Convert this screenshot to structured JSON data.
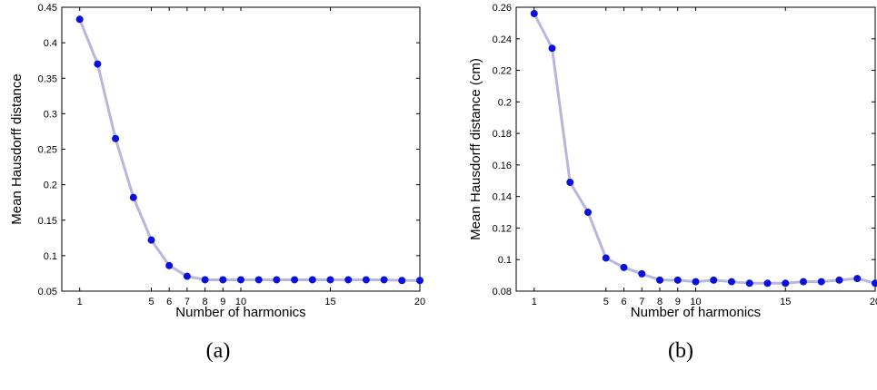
{
  "chart_data": [
    {
      "type": "line",
      "panel_caption": "(a)",
      "xlabel": "Number of harmonics",
      "ylabel": "Mean Hausdorff distance",
      "xlim": [
        0,
        20
      ],
      "ylim": [
        0.05,
        0.45
      ],
      "xticks": [
        1,
        5,
        6,
        7,
        8,
        9,
        10,
        15,
        20
      ],
      "yticks": [
        "0.05",
        "0.1",
        "0.15",
        "0.2",
        "0.25",
        "0.3",
        "0.35",
        "0.4",
        "0.45"
      ],
      "grid": false,
      "series": [
        {
          "x": [
            1,
            2,
            3,
            4,
            5,
            6,
            7,
            8,
            9,
            10,
            11,
            12,
            13,
            14,
            15,
            16,
            17,
            18,
            19,
            20
          ],
          "values": [
            0.433,
            0.37,
            0.265,
            0.182,
            0.122,
            0.086,
            0.071,
            0.066,
            0.066,
            0.066,
            0.066,
            0.066,
            0.066,
            0.066,
            0.066,
            0.066,
            0.066,
            0.066,
            0.065,
            0.065
          ]
        }
      ],
      "colors": {
        "marker": "#0a10dc",
        "line": "#b7b7de"
      }
    },
    {
      "type": "line",
      "panel_caption": "(b)",
      "xlabel": "Number of harmonics",
      "ylabel": "Mean Hausdorff distance (cm)",
      "xlim": [
        0,
        20
      ],
      "ylim": [
        0.08,
        0.26
      ],
      "xticks": [
        1,
        5,
        6,
        7,
        8,
        9,
        10,
        15,
        20
      ],
      "yticks": [
        "0.08",
        "0.1",
        "0.12",
        "0.14",
        "0.16",
        "0.18",
        "0.2",
        "0.22",
        "0.24",
        "0.26"
      ],
      "grid": false,
      "series": [
        {
          "x": [
            1,
            2,
            3,
            4,
            5,
            6,
            7,
            8,
            9,
            10,
            11,
            12,
            13,
            14,
            15,
            16,
            17,
            18,
            19,
            20
          ],
          "values": [
            0.256,
            0.234,
            0.149,
            0.13,
            0.101,
            0.095,
            0.091,
            0.087,
            0.087,
            0.086,
            0.087,
            0.086,
            0.085,
            0.085,
            0.085,
            0.086,
            0.086,
            0.087,
            0.088,
            0.085
          ]
        }
      ],
      "colors": {
        "marker": "#0a10dc",
        "line": "#b7b7de"
      }
    }
  ]
}
